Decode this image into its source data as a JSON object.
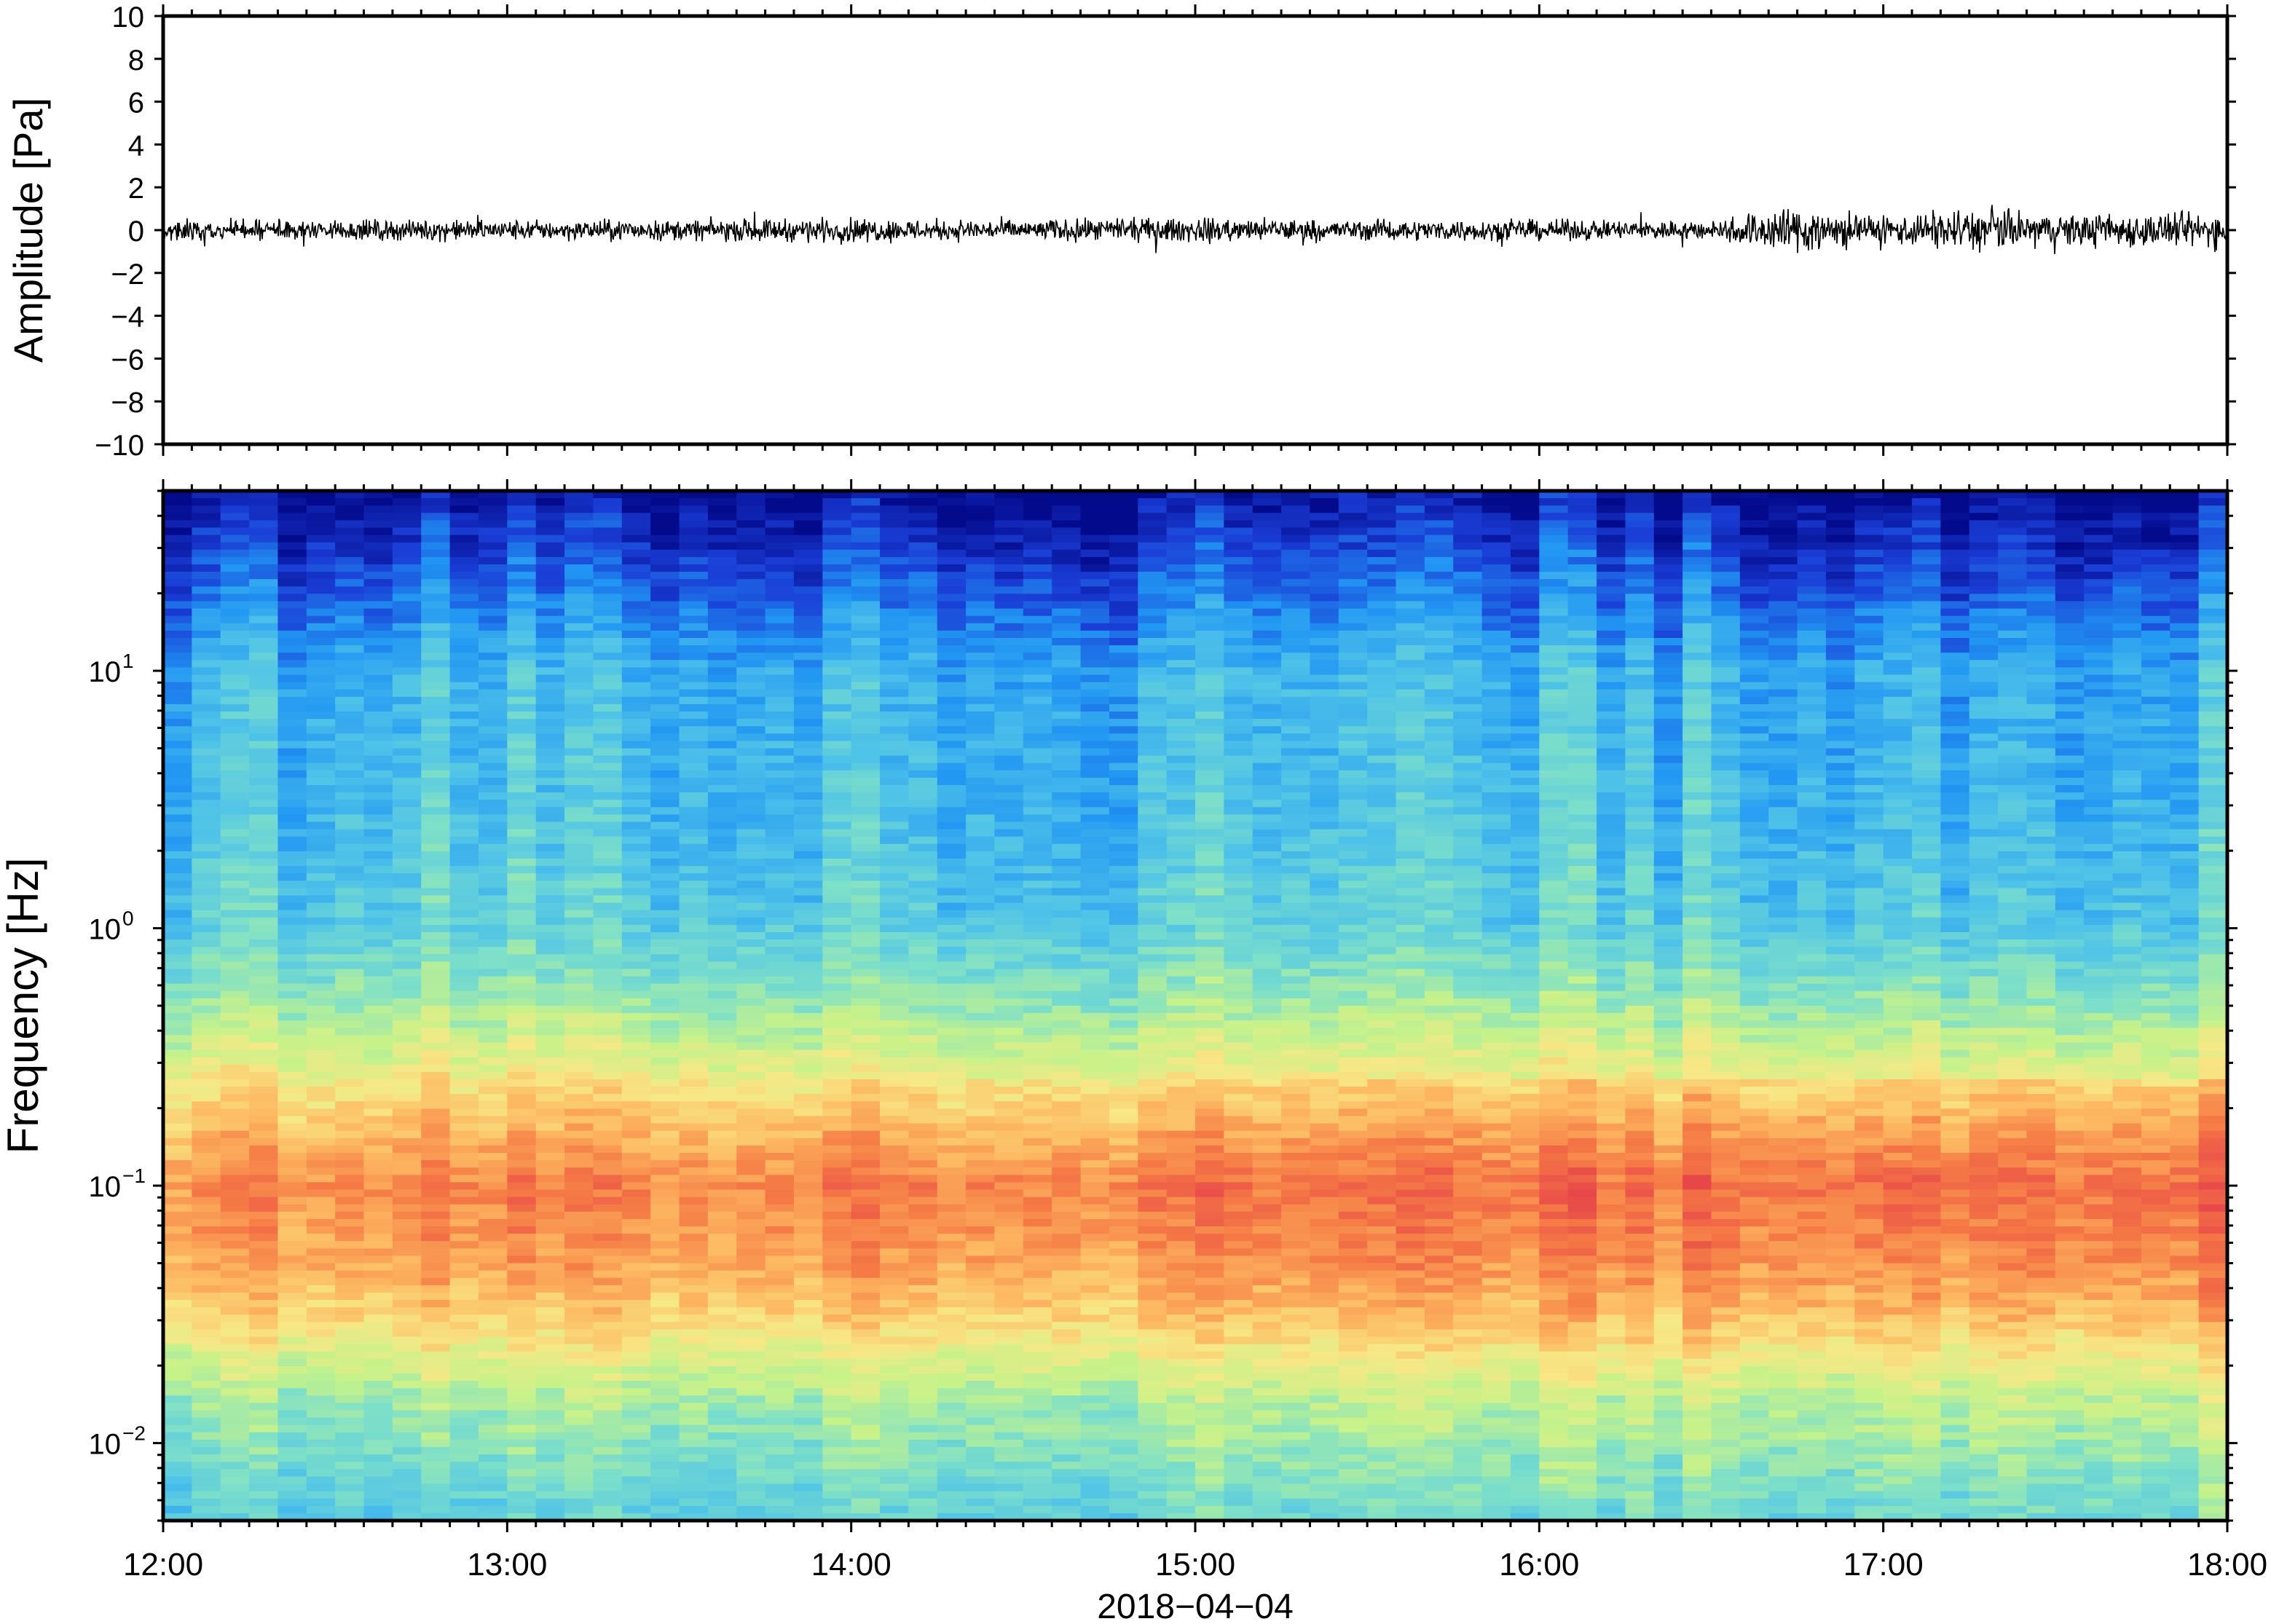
{
  "chart_data": [
    {
      "type": "line",
      "panel": "waveform",
      "ylabel": "Amplitude [Pa]",
      "ylim": [
        -10,
        10
      ],
      "yticks": [
        10,
        8,
        6,
        4,
        2,
        0,
        -2,
        -4,
        -6,
        -8,
        -10
      ],
      "ytick_labels": [
        "10",
        "8",
        "6",
        "4",
        "2",
        "0",
        "−2",
        "−4",
        "−6",
        "−8",
        "−10"
      ],
      "xlim": [
        "2018-04-04 12:00",
        "2018-04-04 18:00"
      ],
      "line_color": "#000000",
      "amplitude_envelope": {
        "x": [
          "12:00",
          "12:30",
          "13:00",
          "13:30",
          "14:00",
          "14:30",
          "15:00",
          "15:30",
          "16:00",
          "16:30",
          "16:45",
          "17:00",
          "17:15",
          "17:30",
          "18:00"
        ],
        "y": [
          0.5,
          0.5,
          0.5,
          0.5,
          0.6,
          0.5,
          0.6,
          0.5,
          0.5,
          0.5,
          1.3,
          0.7,
          1.1,
          0.8,
          0.9
        ]
      }
    },
    {
      "type": "heatmap",
      "panel": "spectrogram",
      "ylabel": "Frequency [Hz]",
      "yscale": "log",
      "ylim": [
        0.005,
        50
      ],
      "yticks": [
        0.01,
        0.1,
        1,
        10
      ],
      "ytick_labels": [
        {
          "base": "10",
          "exp": "−2"
        },
        {
          "base": "10",
          "exp": "−1"
        },
        {
          "base": "10",
          "exp": "0"
        },
        {
          "base": "10",
          "exp": "1"
        }
      ],
      "xlim": [
        "2018-04-04 12:00",
        "2018-04-04 18:00"
      ],
      "colormap": "rainbow (blue = low power, red = high power)",
      "colors": [
        "#040a8c",
        "#1a3dd6",
        "#2196f3",
        "#4fc3e8",
        "#7ee0c8",
        "#c6f28a",
        "#f7e886",
        "#fdb861",
        "#f57a45",
        "#e8474a"
      ],
      "power_profile": {
        "freq_hz": [
          50,
          20,
          10,
          3,
          1,
          0.5,
          0.3,
          0.15,
          0.1,
          0.05,
          0.03,
          0.015,
          0.005
        ],
        "relative_level": [
          0.02,
          0.18,
          0.3,
          0.33,
          0.38,
          0.5,
          0.62,
          0.78,
          0.86,
          0.8,
          0.7,
          0.5,
          0.36
        ]
      }
    }
  ],
  "xaxis": {
    "tick_labels": [
      "12:00",
      "13:00",
      "14:00",
      "15:00",
      "16:00",
      "17:00",
      "18:00"
    ],
    "date_label": "2018−04−04"
  }
}
